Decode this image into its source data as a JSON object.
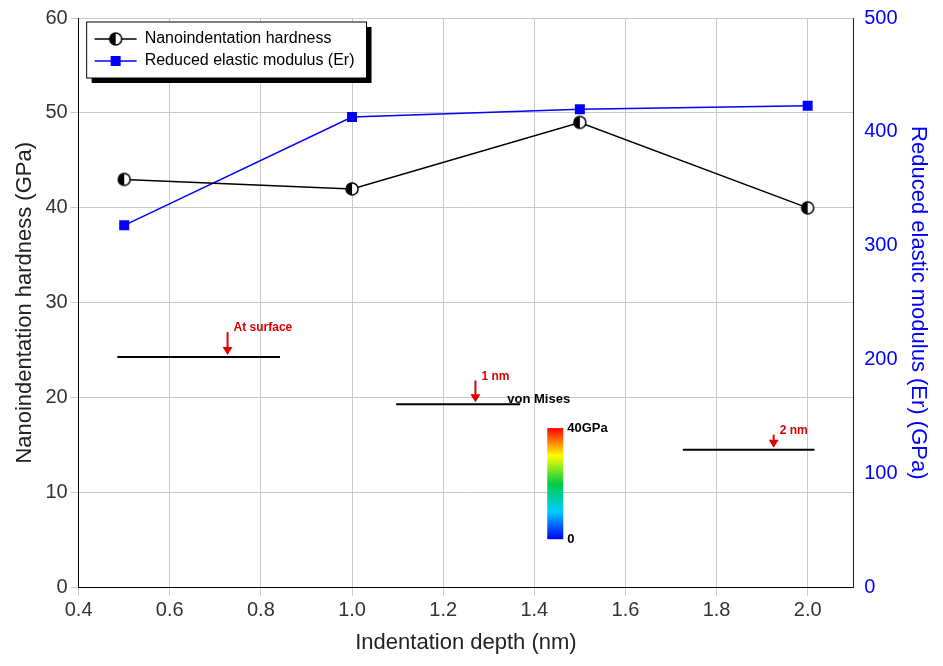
{
  "chart_data": {
    "type": "line",
    "x_label": "Indentation depth (nm)",
    "y_label": "Nanoindentation hardness (GPa)",
    "y2_label": "Reduced elastic modulus (Er) (GPa)",
    "x": [
      0.5,
      1.0,
      1.5,
      2.0
    ],
    "series": [
      {
        "name": "Nanoindentation hardness",
        "color": "#000000",
        "marker": "half-filled circle",
        "values": [
          43,
          42,
          49,
          40
        ]
      },
      {
        "name": "Reduced elastic modulus (Er)",
        "color": "#0000ff",
        "marker": "square",
        "axis": "y2",
        "values": [
          318,
          413,
          420,
          423
        ]
      }
    ],
    "xlim": [
      0.4,
      2.1
    ],
    "xticks": [
      0.4,
      0.6,
      0.8,
      {
        "value": 1.0,
        "label": "1.0"
      },
      1.2,
      1.4,
      1.6,
      1.8,
      {
        "value": 2.0,
        "label": "2.0"
      }
    ],
    "ylim": [
      0,
      60
    ],
    "yticks": [
      0,
      10,
      20,
      30,
      40,
      50,
      60
    ],
    "y2lim": [
      0,
      500
    ],
    "y2ticks": [
      0,
      100,
      200,
      300,
      400,
      500
    ],
    "grid": true,
    "legend": "upper left",
    "annotations": [
      "At surface",
      "1 nm",
      "2 nm"
    ],
    "color_bar": {
      "title": "von Mises",
      "range": [
        0,
        40
      ],
      "ticks": [
        0,
        {
          "value": 40,
          "label": "40GPa"
        }
      ]
    }
  }
}
